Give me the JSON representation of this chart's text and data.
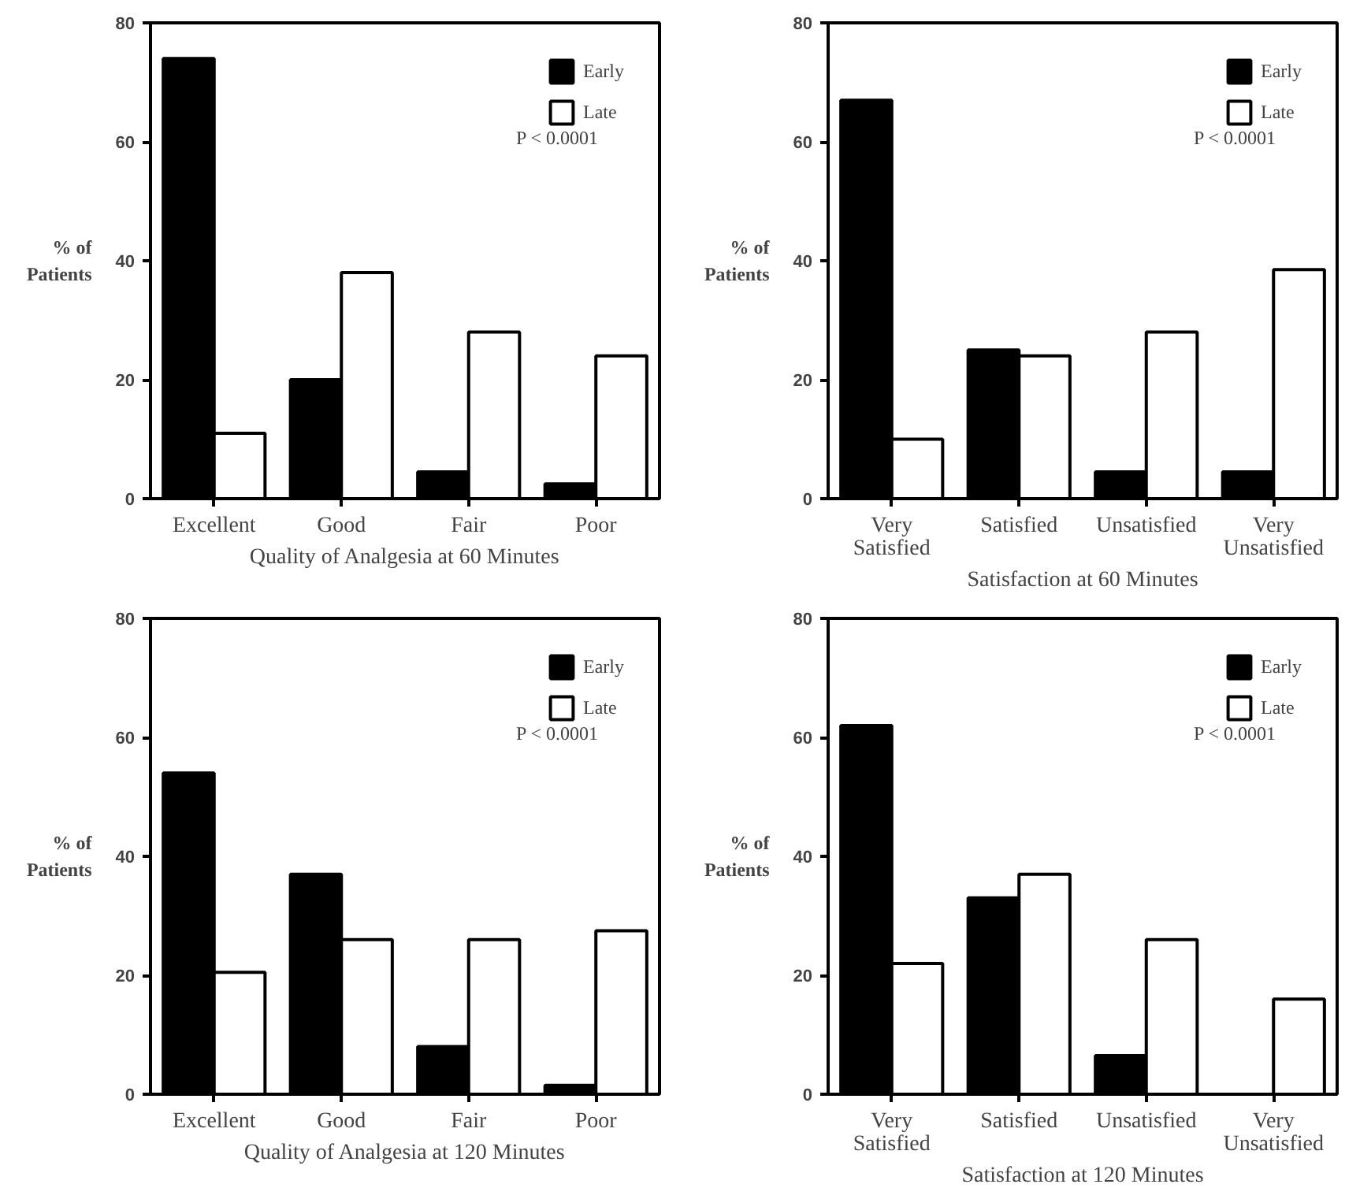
{
  "chart_data": [
    {
      "type": "bar",
      "xlabel": "Quality of Analgesia at 60 Minutes",
      "ylabel": "% of\nPatients",
      "categories": [
        "Excellent",
        "Good",
        "Fair",
        "Poor"
      ],
      "ylim": [
        0,
        80
      ],
      "yticks": [
        0,
        20,
        40,
        60,
        80
      ],
      "legend": "top right",
      "grid": false,
      "annotations": [
        "P < 0.0001"
      ],
      "series": [
        {
          "name": "Early",
          "color": "#000000",
          "values": [
            74,
            20,
            4.5,
            2.5
          ]
        },
        {
          "name": "Late",
          "color": "#ffffff",
          "values": [
            11,
            38,
            28,
            24
          ]
        }
      ]
    },
    {
      "type": "bar",
      "xlabel": "Satisfaction at 60 Minutes",
      "ylabel": "% of\nPatients",
      "categories": [
        "Very\nSatisfied",
        "Satisfied",
        "Unsatisfied",
        "Very\nUnsatisfied"
      ],
      "ylim": [
        0,
        80
      ],
      "yticks": [
        0,
        20,
        40,
        60,
        80
      ],
      "legend": "top right",
      "grid": false,
      "annotations": [
        "P < 0.0001"
      ],
      "series": [
        {
          "name": "Early",
          "color": "#000000",
          "values": [
            67,
            25,
            4.5,
            4.5
          ]
        },
        {
          "name": "Late",
          "color": "#ffffff",
          "values": [
            10,
            24,
            28,
            38.5
          ]
        }
      ]
    },
    {
      "type": "bar",
      "xlabel": "Quality of Analgesia at 120 Minutes",
      "ylabel": "% of\nPatients",
      "categories": [
        "Excellent",
        "Good",
        "Fair",
        "Poor"
      ],
      "ylim": [
        0,
        80
      ],
      "yticks": [
        0,
        20,
        40,
        60,
        80
      ],
      "legend": "top right",
      "grid": false,
      "annotations": [
        "P < 0.0001"
      ],
      "series": [
        {
          "name": "Early",
          "color": "#000000",
          "values": [
            54,
            37,
            8,
            1.5
          ]
        },
        {
          "name": "Late",
          "color": "#ffffff",
          "values": [
            20.5,
            26,
            26,
            27.5
          ]
        }
      ]
    },
    {
      "type": "bar",
      "xlabel": "Satisfaction at 120 Minutes",
      "ylabel": "% of\nPatients",
      "categories": [
        "Very\nSatisfied",
        "Satisfied",
        "Unsatisfied",
        "Very\nUnsatisfied"
      ],
      "ylim": [
        0,
        80
      ],
      "yticks": [
        0,
        20,
        40,
        60,
        80
      ],
      "legend": "top right",
      "grid": false,
      "annotations": [
        "P < 0.0001"
      ],
      "series": [
        {
          "name": "Early",
          "color": "#000000",
          "values": [
            62,
            33,
            6.5,
            0
          ]
        },
        {
          "name": "Late",
          "color": "#ffffff",
          "values": [
            22,
            37,
            26,
            16
          ]
        }
      ]
    }
  ]
}
